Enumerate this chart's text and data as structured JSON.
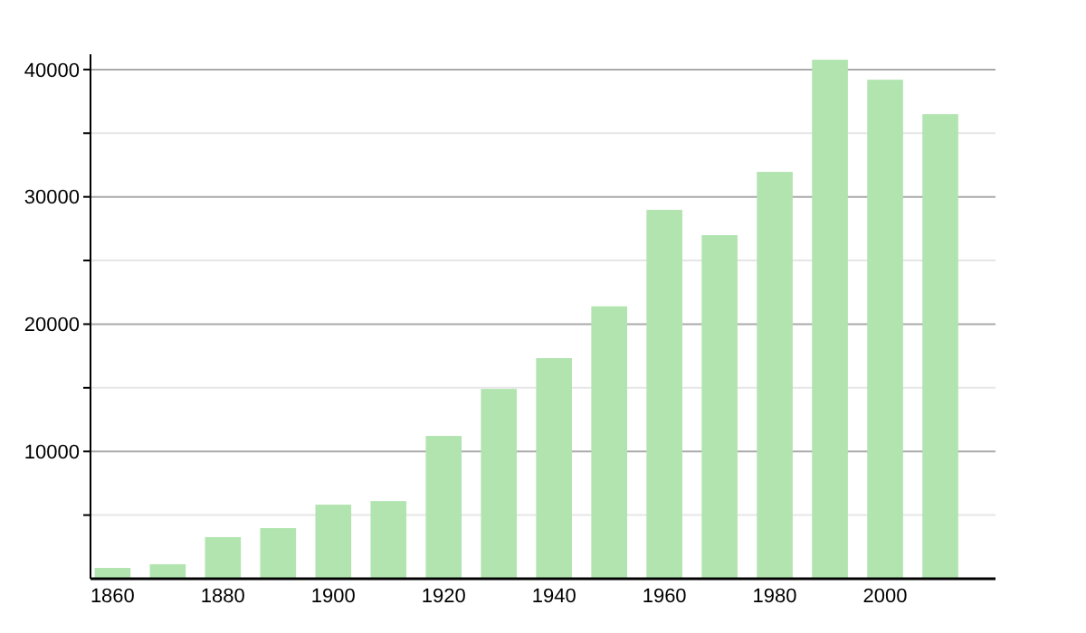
{
  "chart_data": {
    "type": "bar",
    "x": [
      1860,
      1870,
      1880,
      1890,
      1900,
      1910,
      1920,
      1930,
      1940,
      1950,
      1960,
      1970,
      1980,
      1990,
      2000,
      2010
    ],
    "values": [
      850,
      1140,
      3270,
      3980,
      5820,
      6100,
      11220,
      14910,
      17330,
      21400,
      28980,
      26990,
      31960,
      40770,
      39200,
      36500
    ],
    "color": "#b2e4b0",
    "xlim": [
      1856,
      2020
    ],
    "xticks": [
      1860,
      1880,
      1900,
      1920,
      1940,
      1960,
      1980,
      2000
    ],
    "ylim": [
      0,
      41200
    ],
    "yticks": [
      {
        "value": 5000,
        "label": null
      },
      10000,
      {
        "value": 15000,
        "label": null
      },
      20000,
      {
        "value": 25000,
        "label": null
      },
      30000,
      {
        "value": 35000,
        "label": null
      },
      40000
    ],
    "grid": "y"
  }
}
